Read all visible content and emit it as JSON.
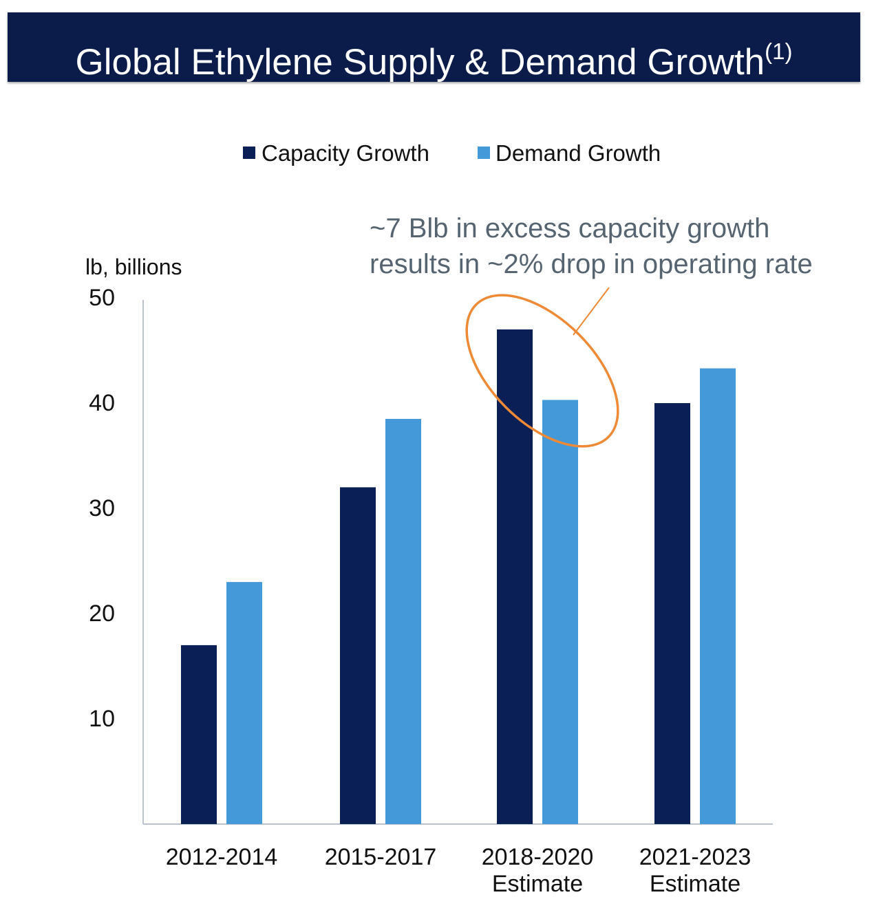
{
  "title": {
    "text": "Global Ethylene Supply & Demand Growth",
    "footnote": "(1)"
  },
  "colors": {
    "banner": "#0b1c4a",
    "capacity": "#0a1f55",
    "demand": "#4499d8",
    "highlight": "#ee8a35",
    "axis": "#b9c2d0",
    "annotation": "#566472"
  },
  "chart_data": {
    "type": "bar",
    "ylabel": "lb, billions",
    "ylim": [
      0,
      50
    ],
    "yticks": [
      10,
      20,
      30,
      40,
      50
    ],
    "grid": false,
    "legend_position": "top",
    "categories": [
      [
        "2012-2014"
      ],
      [
        "2015-2017"
      ],
      [
        "2018-2020",
        "Estimate"
      ],
      [
        "2021-2023",
        "Estimate"
      ]
    ],
    "series": [
      {
        "name": "Capacity Growth",
        "values": [
          17,
          32,
          47,
          40
        ]
      },
      {
        "name": "Demand Growth",
        "values": [
          23,
          38.5,
          40.3,
          43.3
        ]
      }
    ],
    "annotation": {
      "lines": [
        "~7 Blb in excess capacity growth",
        "results in ~2% drop in operating rate"
      ],
      "highlighted_category": "2018-2020"
    }
  }
}
